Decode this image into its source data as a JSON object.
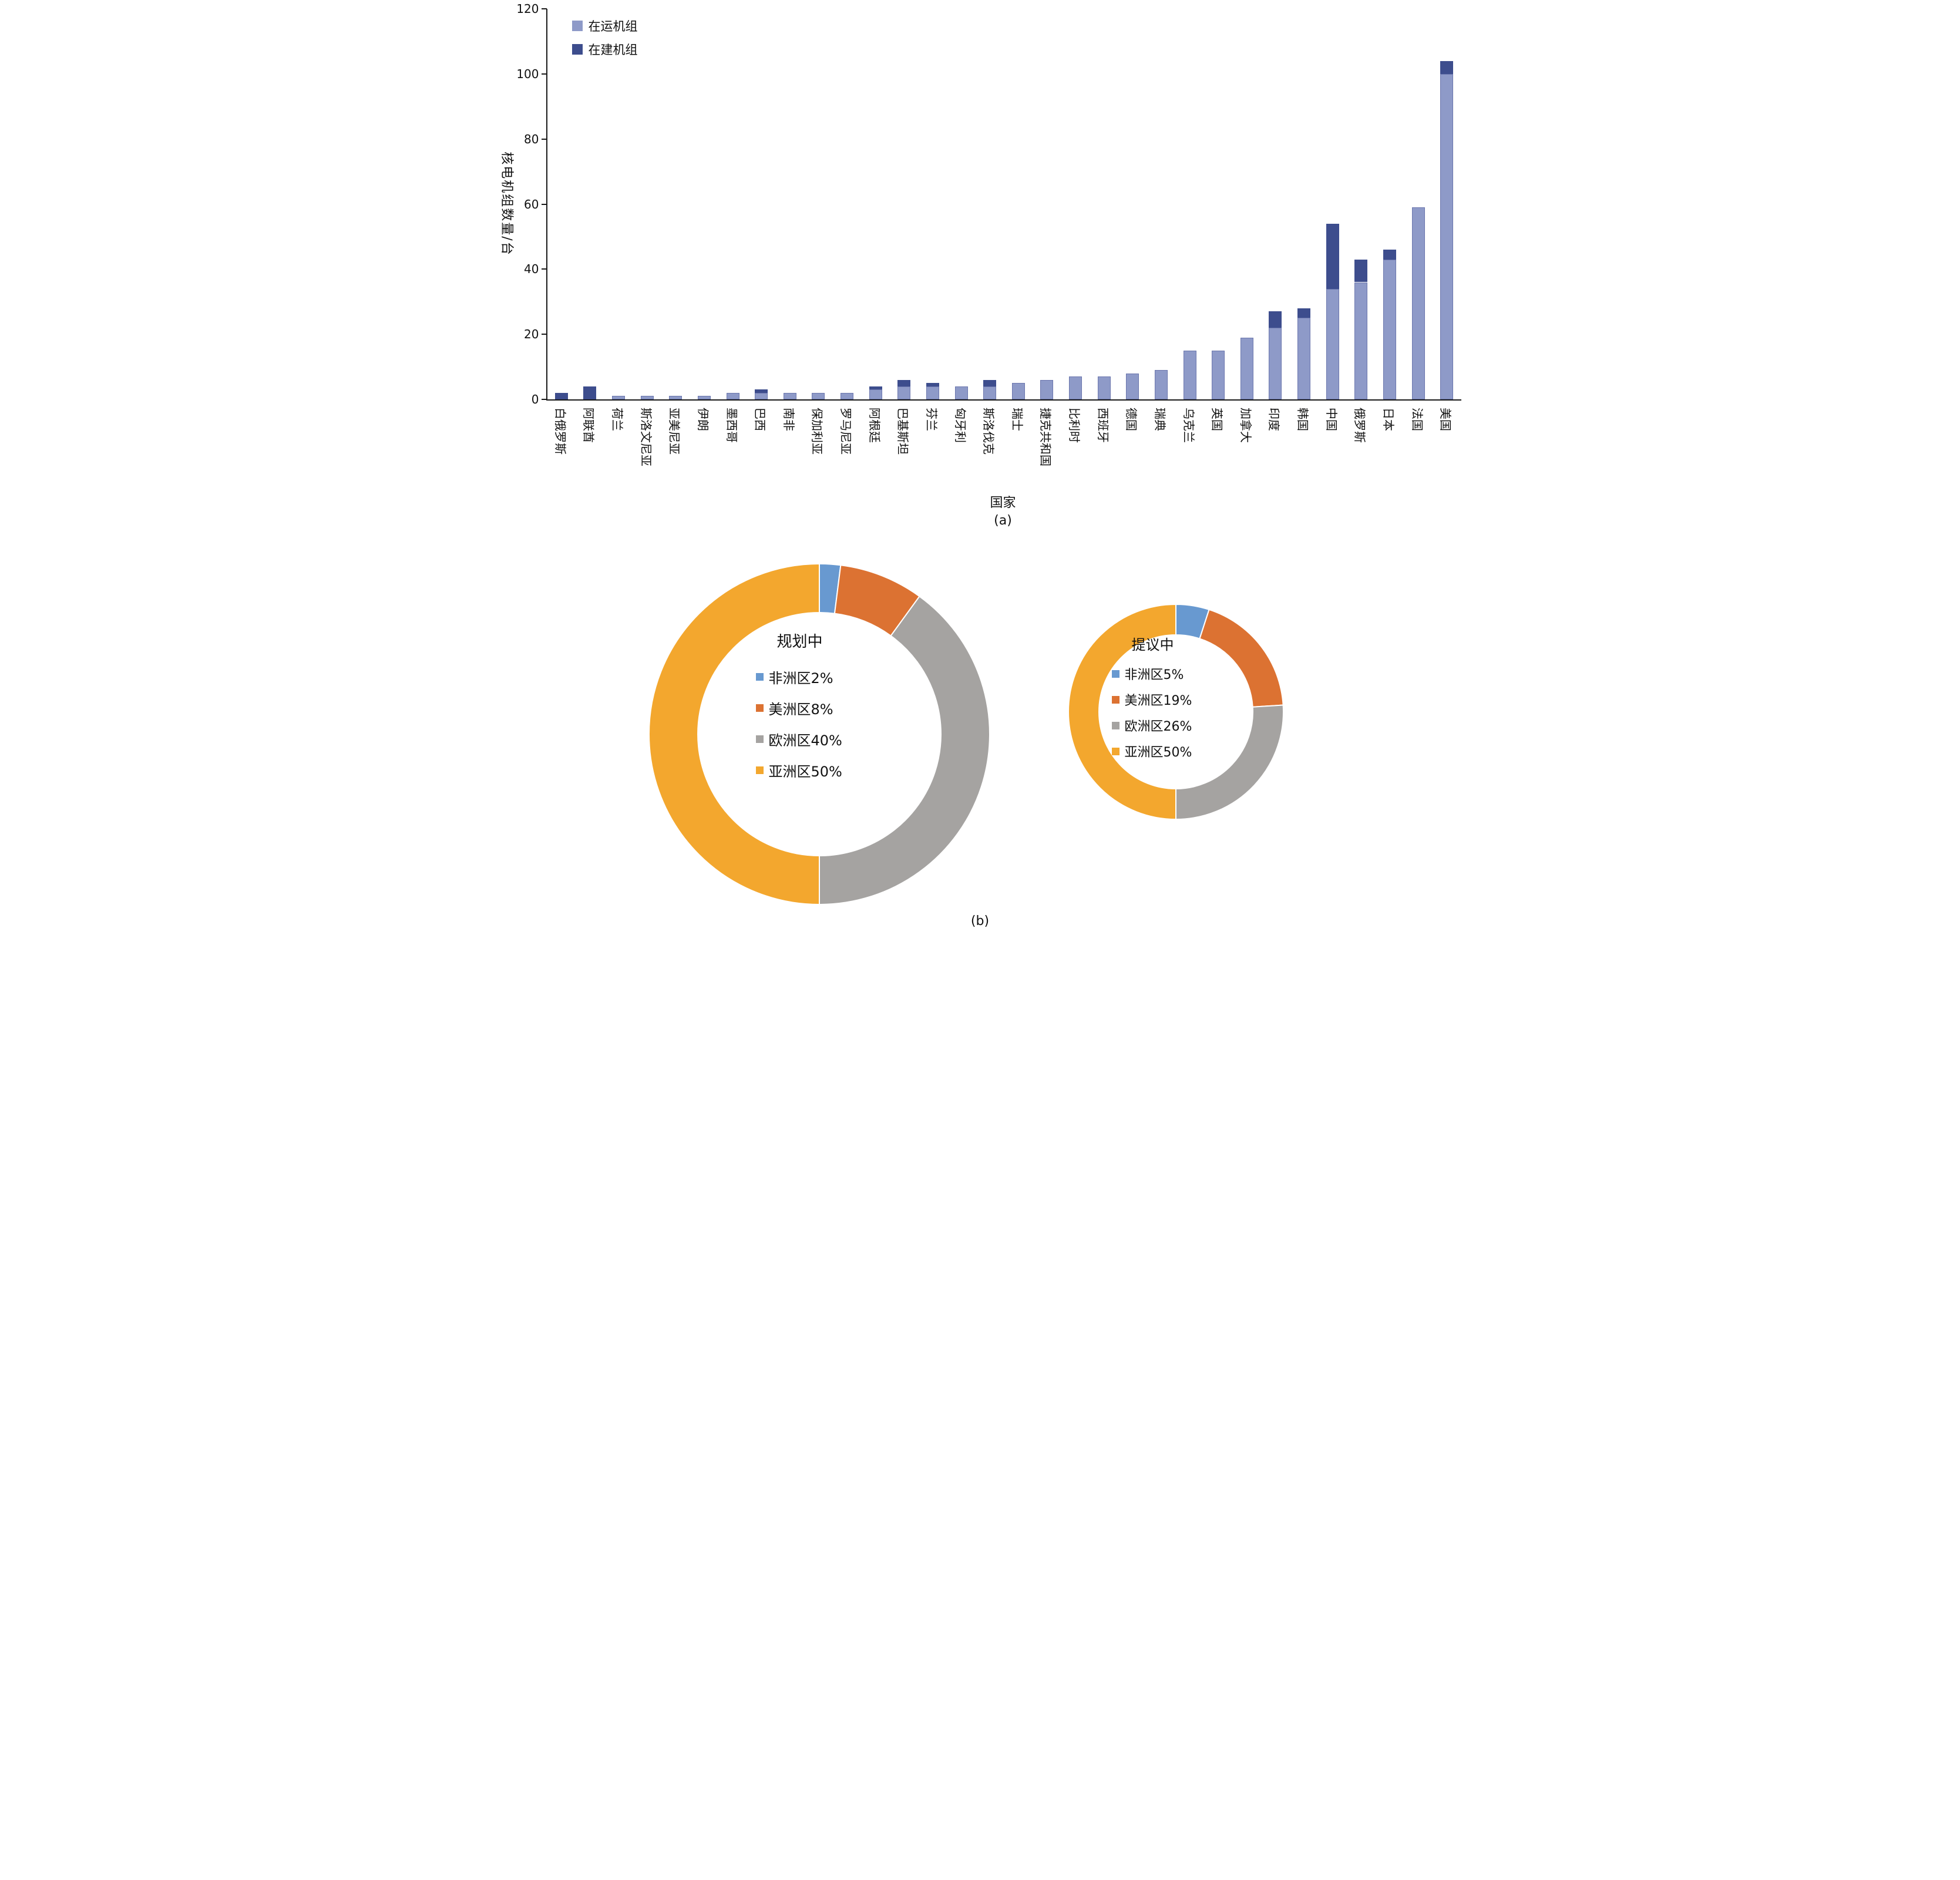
{
  "figure": {
    "panel_a_label": "(a)",
    "panel_b_label": "(b)"
  },
  "chart_data": [
    {
      "type": "bar",
      "stacked": true,
      "xlabel": "国家",
      "ylabel": "核电机组数量/台",
      "ylim": [
        0,
        120
      ],
      "yticks": [
        0,
        20,
        40,
        60,
        80,
        100,
        120
      ],
      "grid": false,
      "legend_position": "top-left",
      "categories": [
        "白俄罗斯",
        "阿联酋",
        "荷兰",
        "斯洛文尼亚",
        "亚美尼亚",
        "伊朗",
        "墨西哥",
        "巴西",
        "南非",
        "保加利亚",
        "罗马尼亚",
        "阿根廷",
        "巴基斯坦",
        "芬兰",
        "匈牙利",
        "斯洛伐克",
        "瑞士",
        "捷克共和国",
        "比利时",
        "西班牙",
        "德国",
        "瑞典",
        "乌克兰",
        "英国",
        "加拿大",
        "印度",
        "韩国",
        "中国",
        "俄罗斯",
        "日本",
        "法国",
        "美国"
      ],
      "series": [
        {
          "name": "在运机组",
          "color": "#8e9ac8",
          "values": [
            0,
            0,
            1,
            1,
            1,
            1,
            2,
            2,
            2,
            2,
            2,
            3,
            4,
            4,
            4,
            4,
            5,
            6,
            7,
            7,
            8,
            9,
            15,
            15,
            19,
            22,
            25,
            34,
            36,
            43,
            59,
            100
          ]
        },
        {
          "name": "在建机组",
          "color": "#3d4d8d",
          "values": [
            2,
            4,
            0,
            0,
            0,
            0,
            0,
            1,
            0,
            0,
            0,
            1,
            2,
            1,
            0,
            2,
            0,
            0,
            0,
            0,
            0,
            0,
            0,
            0,
            0,
            5,
            3,
            20,
            7,
            3,
            0,
            4
          ]
        }
      ]
    },
    {
      "type": "pie",
      "donut": true,
      "title": "规划中",
      "labels": [
        "非洲区",
        "美洲区",
        "欧洲区",
        "亚洲区"
      ],
      "values": [
        2,
        8,
        40,
        50
      ],
      "display_labels": [
        "非洲区2%",
        "美洲区8%",
        "欧洲区40%",
        "亚洲区50%"
      ],
      "colors": [
        "#6899d0",
        "#dc7232",
        "#a5a3a1",
        "#f3a72e"
      ],
      "legend_position": "center"
    },
    {
      "type": "pie",
      "donut": true,
      "title": "提议中",
      "labels": [
        "非洲区",
        "美洲区",
        "欧洲区",
        "亚洲区"
      ],
      "values": [
        5,
        19,
        26,
        50
      ],
      "display_labels": [
        "非洲区5%",
        "美洲区19%",
        "欧洲区26%",
        "亚洲区50%"
      ],
      "colors": [
        "#6899d0",
        "#dc7232",
        "#a5a3a1",
        "#f3a72e"
      ],
      "legend_position": "center"
    }
  ]
}
